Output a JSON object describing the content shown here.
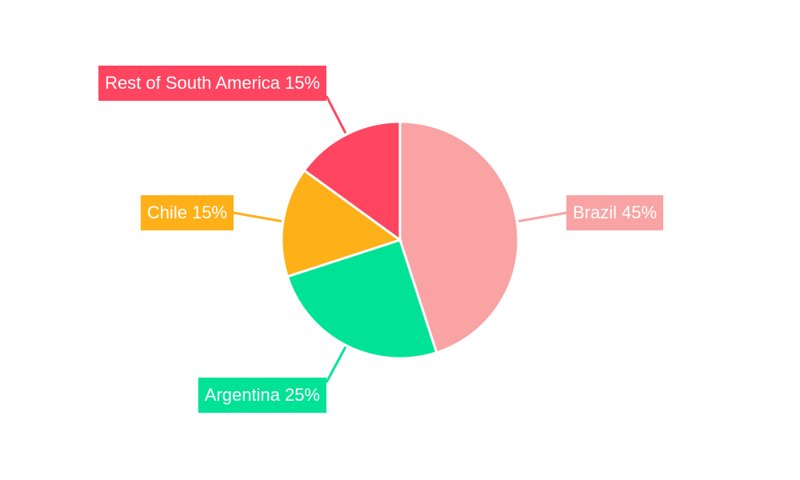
{
  "chart_data": {
    "type": "pie",
    "categories": [
      "Brazil",
      "Argentina",
      "Chile",
      "Rest of South America"
    ],
    "values": [
      45,
      25,
      15,
      15
    ],
    "value_labels": [
      "45%",
      "25%",
      "15%",
      "15%"
    ],
    "colors": [
      "#f9a3a4",
      "#00e396",
      "#feb019",
      "#ff4560"
    ]
  }
}
